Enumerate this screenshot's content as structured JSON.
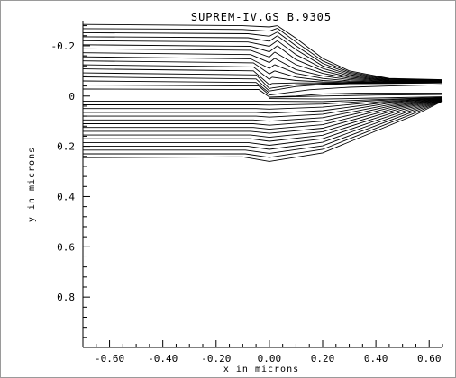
{
  "chart_data": {
    "type": "line",
    "title": "SUPREM-IV.GS B.9305",
    "xlabel": "x in microns",
    "ylabel": "y in microns",
    "xlim": [
      -0.7,
      0.65
    ],
    "ylim": [
      -0.3,
      1.0
    ],
    "y_inverted": true,
    "grid": false,
    "x_ticks": [
      {
        "value": -0.6,
        "label": "-0.60"
      },
      {
        "value": -0.4,
        "label": "-0.40"
      },
      {
        "value": -0.2,
        "label": "-0.20"
      },
      {
        "value": 0.0,
        "label": "0.00"
      },
      {
        "value": 0.2,
        "label": "0.20"
      },
      {
        "value": 0.4,
        "label": "0.40"
      },
      {
        "value": 0.6,
        "label": "0.60"
      }
    ],
    "y_ticks": [
      {
        "value": -0.2,
        "label": "-0.2"
      },
      {
        "value": 0.0,
        "label": "0"
      },
      {
        "value": 0.2,
        "label": "0.2"
      },
      {
        "value": 0.4,
        "label": "0.4"
      },
      {
        "value": 0.6,
        "label": "0.6"
      },
      {
        "value": 0.8,
        "label": "0.8"
      }
    ],
    "series": [
      {
        "values": [
          [
            -0.7,
            -0.285
          ],
          [
            -0.1,
            -0.28
          ],
          [
            0.0,
            -0.275
          ],
          [
            0.03,
            -0.28
          ]
        ]
      },
      {
        "values": [
          [
            -0.7,
            -0.268
          ],
          [
            -0.1,
            -0.265
          ],
          [
            0.0,
            -0.258
          ],
          [
            0.03,
            -0.27
          ]
        ]
      },
      {
        "values": [
          [
            -0.7,
            -0.252
          ],
          [
            -0.08,
            -0.248
          ],
          [
            0.0,
            -0.238
          ],
          [
            0.03,
            -0.255
          ]
        ]
      },
      {
        "values": [
          [
            -0.7,
            -0.236
          ],
          [
            -0.08,
            -0.232
          ],
          [
            0.0,
            -0.218
          ],
          [
            0.03,
            -0.24
          ]
        ]
      },
      {
        "values": [
          [
            -0.7,
            -0.22
          ],
          [
            -0.08,
            -0.215
          ],
          [
            0.0,
            -0.198
          ],
          [
            0.03,
            -0.22
          ]
        ]
      },
      {
        "values": [
          [
            -0.7,
            -0.204
          ],
          [
            -0.07,
            -0.198
          ],
          [
            0.0,
            -0.176
          ],
          [
            0.03,
            -0.2
          ]
        ]
      },
      {
        "values": [
          [
            -0.7,
            -0.188
          ],
          [
            -0.07,
            -0.182
          ],
          [
            0.0,
            -0.155
          ],
          [
            0.02,
            -0.175
          ]
        ]
      },
      {
        "values": [
          [
            -0.7,
            -0.172
          ],
          [
            -0.07,
            -0.165
          ],
          [
            0.0,
            -0.133
          ],
          [
            0.02,
            -0.15
          ]
        ]
      },
      {
        "values": [
          [
            -0.7,
            -0.156
          ],
          [
            -0.07,
            -0.148
          ],
          [
            0.0,
            -0.11
          ],
          [
            0.02,
            -0.125
          ]
        ]
      },
      {
        "values": [
          [
            -0.7,
            -0.14
          ],
          [
            -0.06,
            -0.132
          ],
          [
            0.0,
            -0.088
          ],
          [
            0.02,
            -0.1
          ]
        ]
      },
      {
        "values": [
          [
            -0.7,
            -0.124
          ],
          [
            -0.06,
            -0.116
          ],
          [
            0.0,
            -0.066
          ],
          [
            0.01,
            -0.075
          ]
        ]
      },
      {
        "values": [
          [
            -0.7,
            -0.108
          ],
          [
            -0.06,
            -0.1
          ],
          [
            0.0,
            -0.045
          ],
          [
            0.01,
            -0.05
          ]
        ]
      },
      {
        "values": [
          [
            -0.7,
            -0.092
          ],
          [
            -0.05,
            -0.084
          ],
          [
            0.0,
            -0.03
          ],
          [
            0.01,
            -0.032
          ]
        ]
      },
      {
        "values": [
          [
            -0.7,
            -0.076
          ],
          [
            -0.05,
            -0.068
          ],
          [
            0.0,
            -0.02
          ]
        ]
      },
      {
        "values": [
          [
            -0.7,
            -0.06
          ],
          [
            -0.05,
            -0.054
          ],
          [
            0.0,
            -0.012
          ]
        ]
      },
      {
        "values": [
          [
            -0.7,
            -0.044
          ],
          [
            -0.04,
            -0.04
          ],
          [
            0.0,
            -0.004
          ]
        ]
      },
      {
        "values": [
          [
            -0.7,
            -0.028
          ],
          [
            -0.04,
            -0.026
          ],
          [
            0.0,
            0.004
          ]
        ]
      },
      {
        "values": [
          [
            0.03,
            -0.28
          ],
          [
            0.1,
            -0.23
          ],
          [
            0.2,
            -0.15
          ],
          [
            0.3,
            -0.1
          ],
          [
            0.45,
            -0.07
          ],
          [
            0.65,
            -0.065
          ]
        ]
      },
      {
        "values": [
          [
            0.03,
            -0.27
          ],
          [
            0.1,
            -0.215
          ],
          [
            0.2,
            -0.14
          ],
          [
            0.3,
            -0.095
          ],
          [
            0.45,
            -0.068
          ],
          [
            0.65,
            -0.064
          ]
        ]
      },
      {
        "values": [
          [
            0.03,
            -0.255
          ],
          [
            0.1,
            -0.2
          ],
          [
            0.2,
            -0.13
          ],
          [
            0.3,
            -0.09
          ],
          [
            0.45,
            -0.066
          ],
          [
            0.65,
            -0.063
          ]
        ]
      },
      {
        "values": [
          [
            0.03,
            -0.24
          ],
          [
            0.1,
            -0.185
          ],
          [
            0.2,
            -0.12
          ],
          [
            0.3,
            -0.085
          ],
          [
            0.45,
            -0.064
          ],
          [
            0.65,
            -0.062
          ]
        ]
      },
      {
        "values": [
          [
            0.03,
            -0.22
          ],
          [
            0.1,
            -0.165
          ],
          [
            0.2,
            -0.11
          ],
          [
            0.3,
            -0.08
          ],
          [
            0.45,
            -0.062
          ],
          [
            0.65,
            -0.061
          ]
        ]
      },
      {
        "values": [
          [
            0.03,
            -0.2
          ],
          [
            0.1,
            -0.145
          ],
          [
            0.2,
            -0.1
          ],
          [
            0.3,
            -0.075
          ],
          [
            0.45,
            -0.06
          ],
          [
            0.65,
            -0.06
          ]
        ]
      },
      {
        "values": [
          [
            0.02,
            -0.175
          ],
          [
            0.1,
            -0.125
          ],
          [
            0.2,
            -0.09
          ],
          [
            0.3,
            -0.07
          ],
          [
            0.45,
            -0.058
          ],
          [
            0.65,
            -0.059
          ]
        ]
      },
      {
        "values": [
          [
            0.02,
            -0.15
          ],
          [
            0.1,
            -0.105
          ],
          [
            0.2,
            -0.08
          ],
          [
            0.3,
            -0.065
          ],
          [
            0.45,
            -0.056
          ],
          [
            0.65,
            -0.058
          ]
        ]
      },
      {
        "values": [
          [
            0.02,
            -0.125
          ],
          [
            0.1,
            -0.09
          ],
          [
            0.2,
            -0.07
          ],
          [
            0.3,
            -0.06
          ],
          [
            0.45,
            -0.055
          ],
          [
            0.65,
            -0.057
          ]
        ]
      },
      {
        "values": [
          [
            0.02,
            -0.1
          ],
          [
            0.1,
            -0.075
          ],
          [
            0.2,
            -0.062
          ],
          [
            0.3,
            -0.056
          ],
          [
            0.45,
            -0.054
          ],
          [
            0.65,
            -0.056
          ]
        ]
      },
      {
        "values": [
          [
            0.01,
            -0.075
          ],
          [
            0.1,
            -0.062
          ],
          [
            0.2,
            -0.056
          ],
          [
            0.3,
            -0.053
          ],
          [
            0.45,
            -0.053
          ],
          [
            0.65,
            -0.055
          ]
        ]
      },
      {
        "values": [
          [
            0.01,
            -0.05
          ],
          [
            0.1,
            -0.052
          ],
          [
            0.2,
            -0.052
          ],
          [
            0.3,
            -0.051
          ],
          [
            0.45,
            -0.052
          ],
          [
            0.65,
            -0.054
          ]
        ]
      },
      {
        "values": [
          [
            0.01,
            -0.032
          ],
          [
            0.1,
            -0.045
          ],
          [
            0.2,
            -0.049
          ],
          [
            0.3,
            -0.05
          ],
          [
            0.45,
            -0.051
          ],
          [
            0.65,
            -0.053
          ]
        ]
      },
      {
        "values": [
          [
            0.0,
            -0.02
          ],
          [
            0.1,
            -0.038
          ],
          [
            0.2,
            -0.046
          ],
          [
            0.3,
            -0.049
          ],
          [
            0.45,
            -0.05
          ],
          [
            0.65,
            -0.052
          ]
        ]
      },
      {
        "values": [
          [
            0.0,
            -0.004
          ],
          [
            0.15,
            -0.025
          ],
          [
            0.3,
            -0.035
          ],
          [
            0.45,
            -0.04
          ],
          [
            0.65,
            -0.045
          ]
        ]
      },
      {
        "values": [
          [
            0.0,
            0.004
          ],
          [
            0.1,
            0.0
          ],
          [
            0.2,
            -0.008
          ],
          [
            0.35,
            -0.012
          ],
          [
            0.5,
            -0.012
          ],
          [
            0.65,
            -0.012
          ]
        ]
      },
      {
        "values": [
          [
            0.0,
            0.005
          ],
          [
            0.2,
            0.0
          ],
          [
            0.4,
            -0.004
          ],
          [
            0.65,
            -0.006
          ]
        ]
      },
      {
        "values": [
          [
            0.0,
            0.01
          ],
          [
            0.2,
            0.012
          ],
          [
            0.4,
            0.008
          ],
          [
            0.65,
            0.003
          ]
        ]
      },
      {
        "values": [
          [
            -0.7,
            0.02
          ],
          [
            -0.05,
            0.02
          ],
          [
            0.0,
            0.021
          ],
          [
            0.2,
            0.022
          ],
          [
            0.4,
            0.014
          ],
          [
            0.65,
            0.005
          ]
        ]
      },
      {
        "values": [
          [
            -0.7,
            0.035
          ],
          [
            -0.05,
            0.035
          ],
          [
            0.0,
            0.036
          ],
          [
            0.2,
            0.032
          ],
          [
            0.4,
            0.018
          ],
          [
            0.65,
            0.006
          ]
        ]
      },
      {
        "values": [
          [
            -0.7,
            0.05
          ],
          [
            -0.05,
            0.05
          ],
          [
            0.0,
            0.052
          ],
          [
            0.2,
            0.044
          ],
          [
            0.42,
            0.022
          ],
          [
            0.65,
            0.007
          ]
        ]
      },
      {
        "values": [
          [
            -0.7,
            0.065
          ],
          [
            -0.05,
            0.065
          ],
          [
            0.0,
            0.068
          ],
          [
            0.2,
            0.058
          ],
          [
            0.43,
            0.026
          ],
          [
            0.65,
            0.008
          ]
        ]
      },
      {
        "values": [
          [
            -0.7,
            0.08
          ],
          [
            -0.05,
            0.08
          ],
          [
            0.0,
            0.084
          ],
          [
            0.2,
            0.072
          ],
          [
            0.44,
            0.03
          ],
          [
            0.65,
            0.009
          ]
        ]
      },
      {
        "values": [
          [
            -0.7,
            0.095
          ],
          [
            -0.06,
            0.095
          ],
          [
            0.0,
            0.1
          ],
          [
            0.2,
            0.086
          ],
          [
            0.45,
            0.034
          ],
          [
            0.65,
            0.01
          ]
        ]
      },
      {
        "values": [
          [
            -0.7,
            0.11
          ],
          [
            -0.06,
            0.11
          ],
          [
            0.0,
            0.116
          ],
          [
            0.2,
            0.1
          ],
          [
            0.46,
            0.038
          ],
          [
            0.65,
            0.011
          ]
        ]
      },
      {
        "values": [
          [
            -0.7,
            0.125
          ],
          [
            -0.06,
            0.125
          ],
          [
            0.0,
            0.132
          ],
          [
            0.2,
            0.114
          ],
          [
            0.47,
            0.042
          ],
          [
            0.65,
            0.012
          ]
        ]
      },
      {
        "values": [
          [
            -0.7,
            0.14
          ],
          [
            -0.07,
            0.14
          ],
          [
            0.0,
            0.148
          ],
          [
            0.2,
            0.128
          ],
          [
            0.48,
            0.046
          ],
          [
            0.65,
            0.013
          ]
        ]
      },
      {
        "values": [
          [
            -0.7,
            0.155
          ],
          [
            -0.07,
            0.155
          ],
          [
            0.0,
            0.164
          ],
          [
            0.2,
            0.142
          ],
          [
            0.49,
            0.05
          ],
          [
            0.65,
            0.014
          ]
        ]
      },
      {
        "values": [
          [
            -0.7,
            0.17
          ],
          [
            -0.07,
            0.17
          ],
          [
            0.0,
            0.18
          ],
          [
            0.2,
            0.156
          ],
          [
            0.5,
            0.054
          ],
          [
            0.65,
            0.015
          ]
        ]
      },
      {
        "values": [
          [
            -0.7,
            0.185
          ],
          [
            -0.08,
            0.185
          ],
          [
            0.0,
            0.196
          ],
          [
            0.2,
            0.17
          ],
          [
            0.51,
            0.058
          ],
          [
            0.65,
            0.016
          ]
        ]
      },
      {
        "values": [
          [
            -0.7,
            0.2
          ],
          [
            -0.08,
            0.2
          ],
          [
            0.0,
            0.212
          ],
          [
            0.2,
            0.184
          ],
          [
            0.52,
            0.062
          ],
          [
            0.65,
            0.017
          ]
        ]
      },
      {
        "values": [
          [
            -0.7,
            0.215
          ],
          [
            -0.09,
            0.215
          ],
          [
            0.0,
            0.228
          ],
          [
            0.2,
            0.198
          ],
          [
            0.53,
            0.066
          ],
          [
            0.65,
            0.018
          ]
        ]
      },
      {
        "values": [
          [
            -0.7,
            0.23
          ],
          [
            -0.09,
            0.23
          ],
          [
            0.0,
            0.244
          ],
          [
            0.2,
            0.212
          ],
          [
            0.54,
            0.07
          ],
          [
            0.65,
            0.019
          ]
        ]
      },
      {
        "values": [
          [
            -0.7,
            0.245
          ],
          [
            -0.1,
            0.242
          ],
          [
            0.0,
            0.26
          ],
          [
            0.2,
            0.226
          ],
          [
            0.55,
            0.074
          ],
          [
            0.65,
            0.02
          ]
        ]
      }
    ]
  }
}
